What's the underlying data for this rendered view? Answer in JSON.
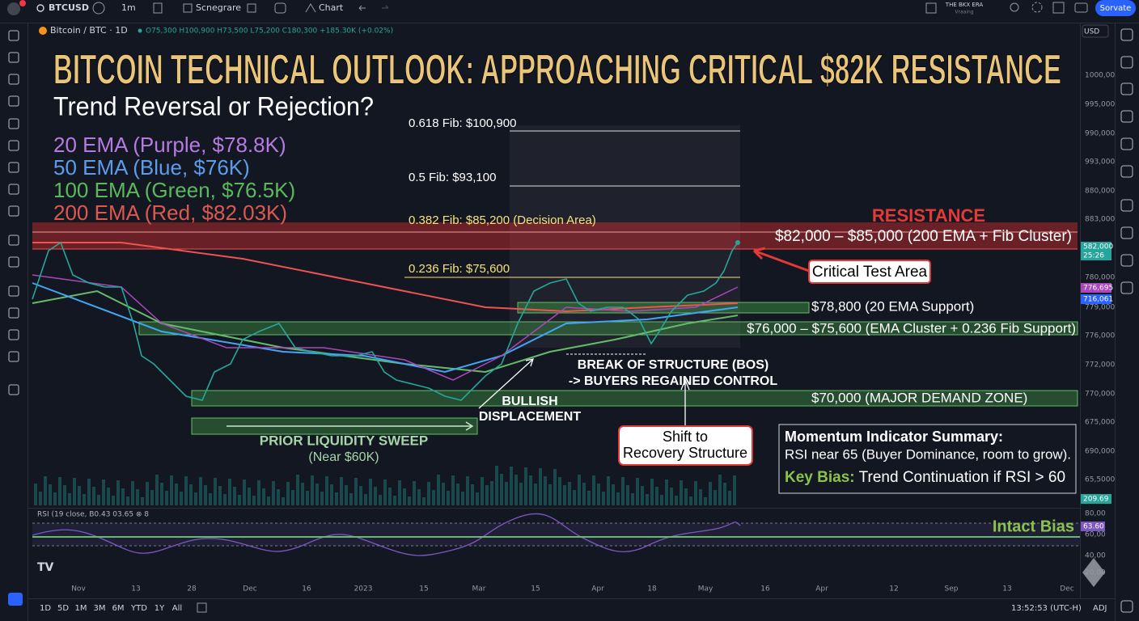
{
  "toolbar": {
    "symbol": "BTCUSD",
    "interval": "1m",
    "indicators": "Scnegrare",
    "chart": "Chart",
    "account": "THE BKX ERA",
    "account_sub": "Vraaing",
    "button": "Sorvate",
    "currency": "USD"
  },
  "legend": {
    "name": "Bitcoin / BTC · 1D",
    "ohlc": "O75,300 H100,900 H73,500 L75,200 C180,300 +185.30K (+0.02%)"
  },
  "title": "BITCOIN TECHNICAL OUTLOOK: APPROACHING CRITICAL $82K RESISTANCE",
  "subtitle": "Trend Reversal or Rejection?",
  "ema_legend": [
    "20 EMA (Purple, $78.8K)",
    "50 EMA (Blue, $76K)",
    "100 EMA (Green, $76.5K)",
    "200 EMA (Red, $82.03K)"
  ],
  "fib_levels": [
    "0.618 Fib: $100,900",
    "0.5 Fib: $93,100",
    "0.382 Fib: $85,200 (Decision Area)",
    "0.236 Fib: $75,600"
  ],
  "resistance": {
    "title": "RESISTANCE",
    "range": "$82,000 – $85,000 (200 EMA + Fib Cluster)",
    "callout": "Critical Test Area"
  },
  "zones": [
    "$78,800 (20 EMA Support)",
    "$76,000 – $75,600 (EMA Cluster + 0.236 Fib Support)",
    "$70,000 (MAJOR DEMAND ZONE)"
  ],
  "annotations": {
    "bos": [
      "BREAK OF STRUCTURE (BOS)",
      "-> BUYERS REGAINED CONTROL"
    ],
    "displacement": [
      "BULLISH",
      "DISPLACEMENT"
    ],
    "sweep": [
      "PRIOR LIQUIDITY SWEEP",
      "(Near $60K)"
    ],
    "shift": [
      "Shift to",
      "Recovery Structure"
    ]
  },
  "momentum": {
    "heading": "Momentum Indicator Summary:",
    "text": "RSI near 65 (Buyer Dominance, room to grow).",
    "bias_label": "Key Bias:",
    "bias_text": "Trend Continuation if RSI > 60"
  },
  "rsi": {
    "label": "RSI (19 close, B0.43 03.65 ⊗ 8",
    "intact": "Intact Bias"
  },
  "price_axis": [
    "1000,00",
    "995,000",
    "990,000",
    "993,000",
    "880,000",
    "883,000",
    "780,000",
    "779,000",
    "776,000",
    "772,000",
    "770,000",
    "675,000",
    "690,000",
    "65,5000"
  ],
  "price_badges": [
    "582,000",
    "25:26",
    "776,695",
    "716,061",
    "209.69"
  ],
  "rsi_axis": [
    "80,00",
    "60,00",
    "40,00",
    "20,00"
  ],
  "rsi_badge": "63.60",
  "time_axis": [
    "Nov",
    "13",
    "28",
    "Dec",
    "16",
    "2023",
    "15",
    "Mar",
    "15",
    "Apr",
    "18",
    "May",
    "16",
    "Apr",
    "12",
    "Sep",
    "13",
    "Dec"
  ],
  "ranges": [
    "1D",
    "5D",
    "1M",
    "3M",
    "6M",
    "YTD",
    "1Y",
    "All"
  ],
  "clock": "13:52:53 (UTC-H)",
  "adj": "ADJ"
}
